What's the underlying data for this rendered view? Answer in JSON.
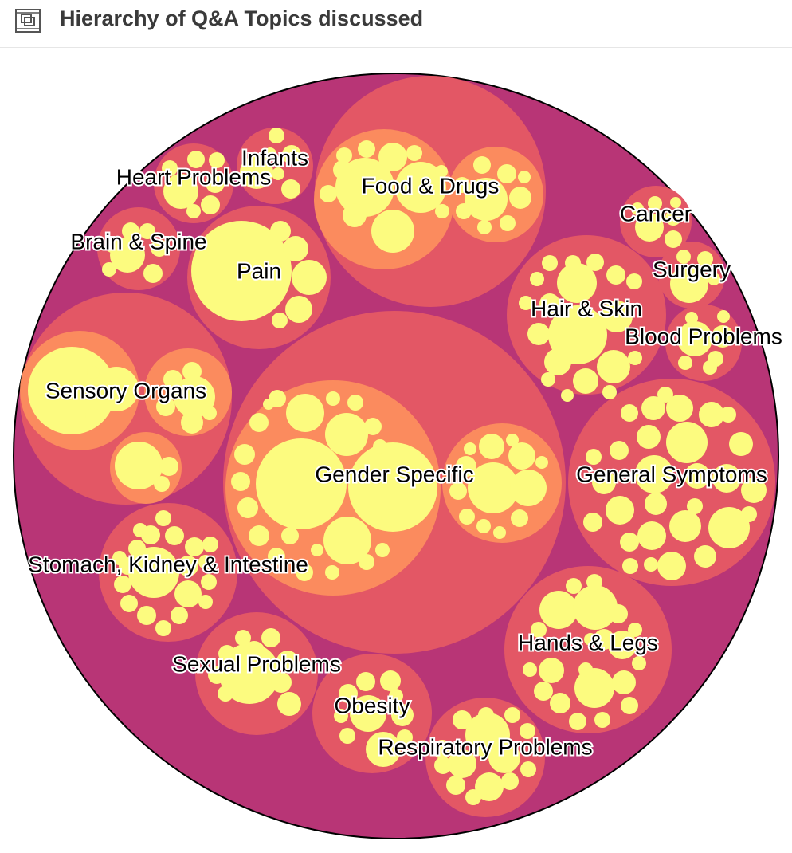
{
  "header": {
    "title": "Hierarchy of Q&A Topics discussed",
    "icon": "frame-icon"
  },
  "colors": {
    "root": "#b83576",
    "level1": "#e35765",
    "level2": "#fb8b5e",
    "leaf": "#fcfb7f",
    "outline": "#000000"
  },
  "chart_data": {
    "type": "circle-packing",
    "title": "Hierarchy of Q&A Topics discussed",
    "groups": [
      {
        "name": "Gender Specific"
      },
      {
        "name": "Food & Drugs"
      },
      {
        "name": "Sensory Organs"
      },
      {
        "name": "Pain"
      },
      {
        "name": "Infants"
      },
      {
        "name": "Heart Problems"
      },
      {
        "name": "Brain & Spine"
      },
      {
        "name": "Cancer"
      },
      {
        "name": "Surgery"
      },
      {
        "name": "Hair & Skin"
      },
      {
        "name": "Blood Problems"
      },
      {
        "name": "General Symptoms"
      },
      {
        "name": "Stomach, Kidney & Intestine"
      },
      {
        "name": "Hands & Legs"
      },
      {
        "name": "Sexual Problems"
      },
      {
        "name": "Obesity"
      },
      {
        "name": "Respiratory Problems"
      }
    ]
  }
}
